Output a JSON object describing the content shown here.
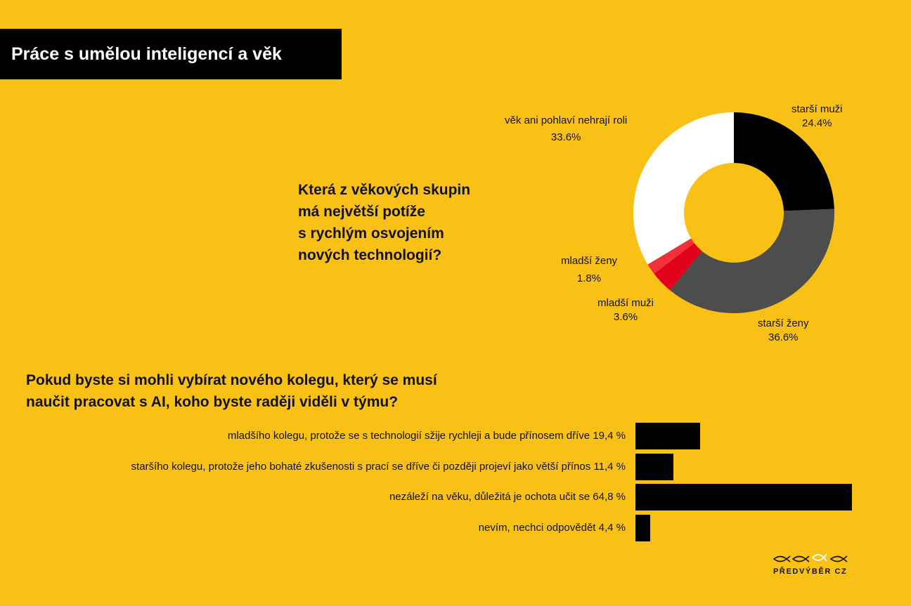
{
  "title": "Práce s umělou inteligencí a věk",
  "donut_question_lines": [
    "Která z věkových skupin",
    "má největší potíže",
    "s rychlým osvojením",
    "nových technologií?"
  ],
  "bar_question_lines": [
    "Pokud byste si mohli vybírat nového kolegu, který se musí",
    "naučit pracovat s AI, koho byste raději viděli v týmu?"
  ],
  "logo": {
    "text": "PŘEDVÝBĚR CZ",
    "icon": "fish-icons"
  },
  "chart_data": [
    {
      "type": "pie",
      "variant": "donut",
      "categories": [
        "starší muži",
        "starší ženy",
        "mladší muži",
        "mladší ženy",
        "věk ani pohlaví nehrají roli"
      ],
      "values": [
        24.4,
        36.6,
        3.6,
        1.8,
        33.6
      ],
      "value_labels": [
        "24.4%",
        "36.6%",
        "3.6%",
        "1.8%",
        "33.6%"
      ],
      "colors": [
        "#000000",
        "#4D4D4D",
        "#E2001A",
        "#F2303A",
        "#FFFFFF"
      ]
    },
    {
      "type": "bar",
      "orientation": "horizontal",
      "categories": [
        "mladšího kolegu, protože se s technologií sžije rychleji a bude přínosem dříve",
        "staršího kolegu, protože jeho bohaté zkušenosti s prací se dříve či později projeví jako větší přínos",
        "nezáleží na věku, důležitá je ochota učit se",
        "nevím, nechci odpovědět"
      ],
      "values": [
        19.4,
        11.4,
        64.8,
        4.4
      ],
      "value_labels": [
        "19,4 %",
        "11,4 %",
        "64,8 %",
        "4,4 %"
      ],
      "bar_color": "#000000",
      "xlim": [
        0,
        100
      ]
    }
  ]
}
